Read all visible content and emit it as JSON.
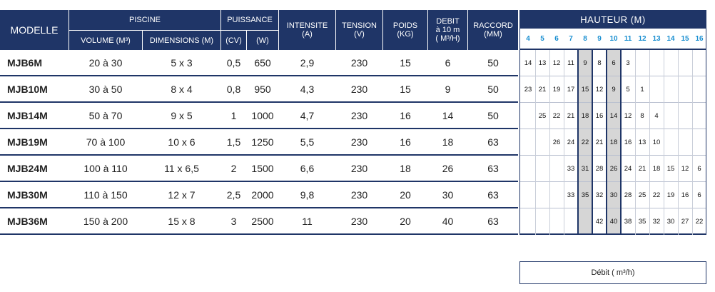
{
  "headers": {
    "modele": "MODELLE",
    "piscine": "PISCINE",
    "volume": "VOLUME (M³)",
    "dimensions": "DIMENSIONS (M)",
    "puissance": "PUISSANCE",
    "cv": "(CV)",
    "w": "(W)",
    "intensite": "INTENSITE",
    "intensite_unit": "(A)",
    "tension": "TENSION",
    "tension_unit": "(V)",
    "poids": "POIDS",
    "poids_unit": "(KG)",
    "debit": "DEBIT",
    "debit_sub": "à 10 m",
    "debit_unit": "( M³/H)",
    "raccord": "RACCORD",
    "raccord_unit": "(MM)"
  },
  "rows": [
    {
      "model": "MJB6M",
      "volume": "20 à 30",
      "dimensions": "5 x 3",
      "cv": "0,5",
      "w": "650",
      "intensite": "2,9",
      "tension": "230",
      "poids": "15",
      "debit": "6",
      "raccord": "50"
    },
    {
      "model": "MJB10M",
      "volume": "30 à 50",
      "dimensions": "8 x 4",
      "cv": "0,8",
      "w": "950",
      "intensite": "4,3",
      "tension": "230",
      "poids": "15",
      "debit": "9",
      "raccord": "50"
    },
    {
      "model": "MJB14M",
      "volume": "50 à 70",
      "dimensions": "9 x 5",
      "cv": "1",
      "w": "1000",
      "intensite": "4,7",
      "tension": "230",
      "poids": "16",
      "debit": "14",
      "raccord": "50"
    },
    {
      "model": "MJB19M",
      "volume": "70 à 100",
      "dimensions": "10 x 6",
      "cv": "1,5",
      "w": "1250",
      "intensite": "5,5",
      "tension": "230",
      "poids": "16",
      "debit": "18",
      "raccord": "63"
    },
    {
      "model": "MJB24M",
      "volume": "100 à 110",
      "dimensions": "11 x 6,5",
      "cv": "2",
      "w": "1500",
      "intensite": "6,6",
      "tension": "230",
      "poids": "18",
      "debit": "26",
      "raccord": "63"
    },
    {
      "model": "MJB30M",
      "volume": "110 à 150",
      "dimensions": "12 x 7",
      "cv": "2,5",
      "w": "2000",
      "intensite": "9,8",
      "tension": "230",
      "poids": "20",
      "debit": "30",
      "raccord": "63"
    },
    {
      "model": "MJB36M",
      "volume": "150 à 200",
      "dimensions": "15 x 8",
      "cv": "3",
      "w": "2500",
      "intensite": "11",
      "tension": "230",
      "poids": "20",
      "debit": "40",
      "raccord": "63"
    }
  ],
  "hauteur": {
    "title": "HAUTEUR (M)",
    "heights": [
      "4",
      "5",
      "6",
      "7",
      "8",
      "9",
      "10",
      "11",
      "12",
      "13",
      "14",
      "15",
      "16"
    ],
    "rows": [
      [
        "14",
        "13",
        "12",
        "11",
        "9",
        "8",
        "6",
        "3",
        "",
        "",
        "",
        "",
        ""
      ],
      [
        "23",
        "21",
        "19",
        "17",
        "15",
        "12",
        "9",
        "5",
        "1",
        "",
        "",
        "",
        ""
      ],
      [
        "",
        "25",
        "22",
        "21",
        "18",
        "16",
        "14",
        "12",
        "8",
        "4",
        "",
        "",
        ""
      ],
      [
        "",
        "",
        "26",
        "24",
        "22",
        "21",
        "18",
        "16",
        "13",
        "10",
        "",
        "",
        ""
      ],
      [
        "",
        "",
        "",
        "33",
        "31",
        "28",
        "26",
        "24",
        "21",
        "18",
        "15",
        "12",
        "6"
      ],
      [
        "",
        "",
        "",
        "33",
        "35",
        "32",
        "30",
        "28",
        "25",
        "22",
        "19",
        "16",
        "6"
      ],
      [
        "",
        "",
        "",
        "",
        "",
        "42",
        "40",
        "38",
        "35",
        "32",
        "30",
        "27",
        "22"
      ]
    ],
    "footer": "Débit ( m³/h)"
  },
  "colors": {
    "header_bg": "#1f3567",
    "height_label": "#1a8fd1",
    "shade": "#d6d6d6"
  }
}
